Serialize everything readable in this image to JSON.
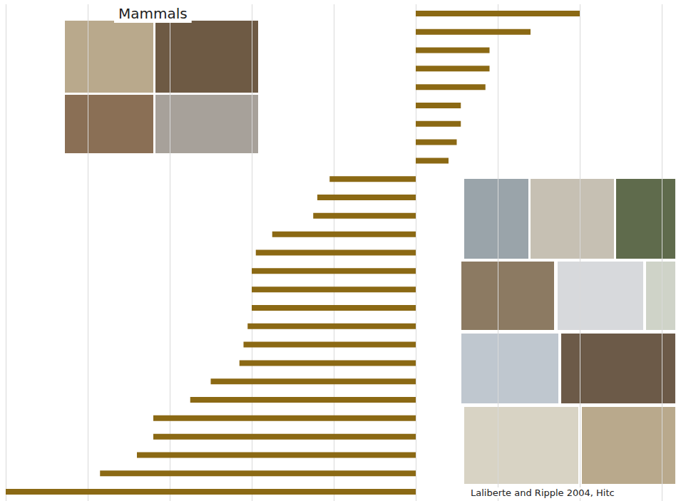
{
  "chart_data": {
    "type": "bar",
    "title": "Mammals",
    "orientation": "horizontal",
    "categories": [
      null,
      null,
      null,
      null,
      null,
      null,
      null,
      null,
      null,
      null,
      null,
      null,
      null,
      null,
      null,
      null,
      null,
      null,
      null,
      null,
      null,
      null,
      null,
      null,
      null,
      null,
      null
    ],
    "values": [
      20,
      14,
      9,
      9,
      8.5,
      5.5,
      5.5,
      5,
      4,
      -10.5,
      -12,
      -12.5,
      -17.5,
      -19.5,
      -20,
      -20,
      -20,
      -20.5,
      -21,
      -21.5,
      -25,
      -27.5,
      -32,
      -32,
      -34,
      -38.5,
      -50
    ],
    "color": "#8b6914",
    "xlim": [
      -50,
      30
    ],
    "xticks": [
      -50,
      -40,
      -30,
      -20,
      -10,
      0,
      10,
      20,
      30
    ],
    "grid": true,
    "tick_labels": false,
    "annotations": [
      "Laliberte and Ripple 2004, Hitc"
    ]
  }
}
